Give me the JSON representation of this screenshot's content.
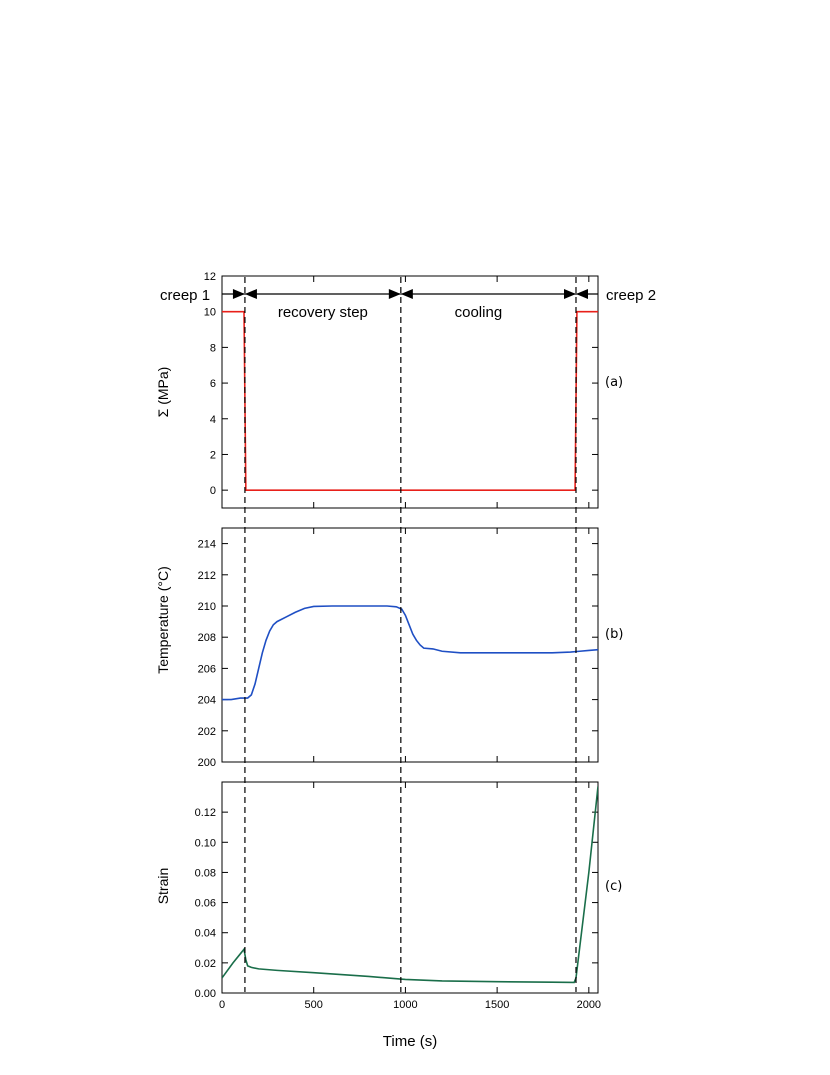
{
  "chart_data": [
    {
      "type": "line",
      "panel_label": "(a)",
      "ylabel": "Σ (MPa)",
      "xlim": [
        0,
        2050
      ],
      "ylim": [
        -1,
        12
      ],
      "yticks": [
        0,
        2,
        4,
        6,
        8,
        10,
        12
      ],
      "series": [
        {
          "color": "#e8201a",
          "x": [
            0,
            120,
            130,
            1925,
            1935,
            2050
          ],
          "y": [
            10,
            10,
            0,
            0,
            10,
            10
          ]
        }
      ]
    },
    {
      "type": "line",
      "panel_label": "(b)",
      "ylabel": "Temperature (°C)",
      "xlim": [
        0,
        2050
      ],
      "ylim": [
        200,
        215
      ],
      "yticks": [
        200,
        202,
        204,
        206,
        208,
        210,
        212,
        214
      ],
      "series": [
        {
          "color": "#1f4fc4",
          "x": [
            0,
            50,
            100,
            140,
            160,
            180,
            200,
            220,
            240,
            260,
            280,
            300,
            350,
            400,
            450,
            500,
            600,
            700,
            800,
            900,
            950,
            980,
            1000,
            1020,
            1040,
            1060,
            1080,
            1100,
            1150,
            1200,
            1300,
            1400,
            1500,
            1600,
            1700,
            1800,
            1900,
            1950,
            2000,
            2050
          ],
          "y": [
            204.0,
            204.0,
            204.1,
            204.1,
            204.3,
            205.0,
            206.0,
            207.0,
            207.8,
            208.4,
            208.8,
            209.0,
            209.3,
            209.6,
            209.85,
            209.97,
            210.0,
            210.0,
            210.0,
            210.0,
            209.95,
            209.8,
            209.4,
            208.8,
            208.2,
            207.8,
            207.5,
            207.3,
            207.25,
            207.1,
            207.0,
            207.0,
            207.0,
            207.0,
            207.0,
            207.0,
            207.05,
            207.1,
            207.15,
            207.2
          ]
        }
      ]
    },
    {
      "type": "line",
      "panel_label": "(c)",
      "ylabel": "Strain",
      "xlim": [
        0,
        2050
      ],
      "ylim": [
        0,
        0.14
      ],
      "yticks": [
        0.0,
        0.02,
        0.04,
        0.06,
        0.08,
        0.1,
        0.12
      ],
      "ytick_labels": [
        "0.00",
        "0.02",
        "0.04",
        "0.06",
        "0.08",
        "0.10",
        "0.12"
      ],
      "xticks": [
        0,
        500,
        1000,
        1500,
        2000
      ],
      "xlabel": "Time (s)",
      "series": [
        {
          "color": "#1a6e4a",
          "x": [
            0,
            60,
            100,
            120,
            130,
            140,
            160,
            200,
            300,
            500,
            800,
            1000,
            1200,
            1500,
            1800,
            1920,
            1930,
            1950,
            2000,
            2050
          ],
          "y": [
            0.01,
            0.02,
            0.026,
            0.029,
            0.022,
            0.018,
            0.017,
            0.016,
            0.015,
            0.0135,
            0.011,
            0.009,
            0.008,
            0.0075,
            0.0072,
            0.007,
            0.01,
            0.03,
            0.08,
            0.137
          ]
        }
      ]
    }
  ],
  "phases": {
    "labels": [
      "creep 1",
      "recovery step",
      "cooling",
      "creep 2"
    ],
    "boundaries": [
      125,
      975,
      1930
    ]
  }
}
